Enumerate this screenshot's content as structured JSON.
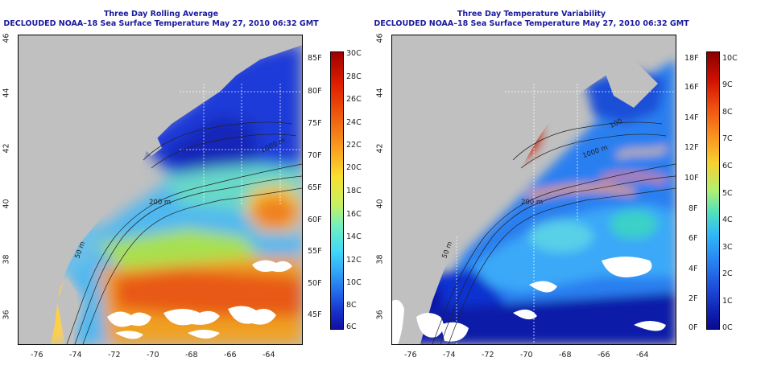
{
  "left_panel": {
    "title": "Three Day Rolling Average",
    "subtitle": "DECLOUDED NOAA–18 Sea Surface Temperature May 27, 2010 06:32 GMT",
    "colorbar_f": [
      "85F",
      "80F",
      "75F",
      "70F",
      "65F",
      "60F",
      "55F",
      "50F",
      "45F"
    ],
    "colorbar_c": [
      "30C",
      "28C",
      "26C",
      "24C",
      "22C",
      "20C",
      "18C",
      "16C",
      "14C",
      "12C",
      "10C",
      "8C",
      "6C"
    ],
    "contour_labels": [
      "200 m",
      "50 m",
      "1000 m"
    ]
  },
  "right_panel": {
    "title": "Three Day Temperature Variability",
    "subtitle": "DECLOUDED NOAA–18 Sea Surface Temperature May 27, 2010 06:32 GMT",
    "colorbar_f": [
      "18F",
      "16F",
      "14F",
      "12F",
      "10F",
      "8F",
      "6F",
      "4F",
      "2F",
      "0F"
    ],
    "colorbar_c": [
      "10C",
      "9C",
      "8C",
      "7C",
      "6C",
      "5C",
      "4C",
      "3C",
      "2C",
      "1C",
      "0C"
    ],
    "contour_labels": [
      "200 m",
      "50 m",
      "1000 m",
      "100"
    ]
  },
  "axes": {
    "x_ticks": [
      "-76",
      "-74",
      "-72",
      "-70",
      "-68",
      "-66",
      "-64"
    ],
    "y_ticks": [
      "46",
      "44",
      "42",
      "40",
      "38",
      "36"
    ]
  },
  "colors": {
    "land": "#c0c0c0",
    "title": "#1a1a9e"
  }
}
